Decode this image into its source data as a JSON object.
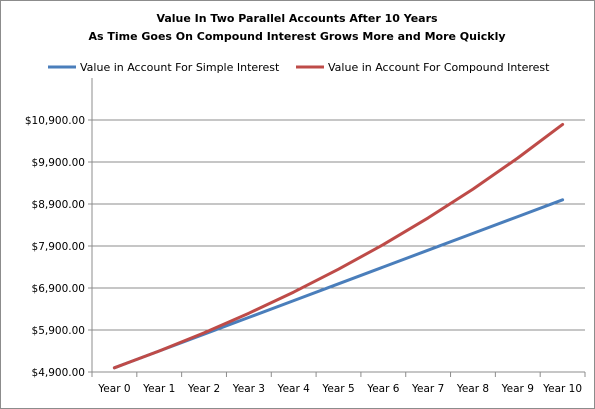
{
  "chart_data": {
    "type": "line",
    "title_line1": "Value In Two Parallel Accounts After 10 Years",
    "title_line2": "As Time Goes On Compound Interest Grows More and More Quickly",
    "categories": [
      "Year 0",
      "Year 1",
      "Year 2",
      "Year 3",
      "Year 4",
      "Year 5",
      "Year 6",
      "Year 7",
      "Year 8",
      "Year 9",
      "Year 10"
    ],
    "y_ticks": [
      4900,
      5900,
      6900,
      7900,
      8900,
      9900,
      10900
    ],
    "y_tick_labels": [
      "$4,900.00",
      "$5,900.00",
      "$6,900.00",
      "$7,900.00",
      "$8,900.00",
      "$9,900.00",
      "$10,900.00"
    ],
    "ylim": [
      4900,
      11900
    ],
    "grid": "horizontal",
    "legend_position": "top",
    "series": [
      {
        "name": "Value in Account For Simple Interest",
        "color": "#4a7ebb",
        "values": [
          5000,
          5400,
          5800,
          6200,
          6600,
          7000,
          7400,
          7800,
          8200,
          8600,
          9000
        ]
      },
      {
        "name": "Value in Account For Compound Interest",
        "color": "#be4b48",
        "values": [
          5000,
          5400,
          5832,
          6299,
          6802,
          7347,
          7934,
          8569,
          9255,
          9995,
          10795
        ]
      }
    ]
  }
}
